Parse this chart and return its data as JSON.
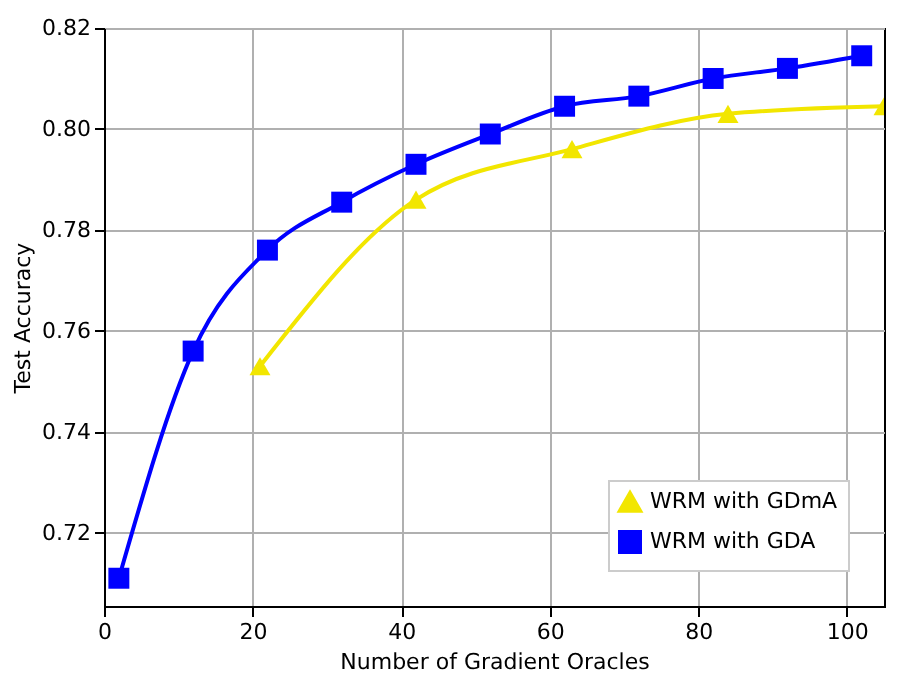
{
  "chart_data": {
    "type": "line",
    "xlabel": "Number of Gradient Oracles",
    "ylabel": "Test Accuracy",
    "xlim": [
      0,
      105
    ],
    "xticks": [
      0,
      20,
      40,
      60,
      80,
      100
    ],
    "ylim": [
      0.7055,
      0.82
    ],
    "yticks": [
      0.72,
      0.74,
      0.76,
      0.78,
      {
        "value": 0.8,
        "label": "0.80"
      },
      0.82
    ],
    "grid": true,
    "legend": "bottom right",
    "line_style": "solid",
    "series": [
      {
        "name": "WRM with GDmA",
        "color": "#f2e600",
        "marker": "triangle",
        "x": [
          21,
          42,
          63,
          84,
          105
        ],
        "values": [
          0.753,
          0.786,
          0.796,
          0.803,
          0.8045
        ]
      },
      {
        "name": "WRM with GDA",
        "color": "#0000ff",
        "marker": "square",
        "x": [
          2,
          12,
          22,
          32,
          42,
          52,
          62,
          72,
          82,
          92,
          102
        ],
        "values": [
          0.711,
          0.756,
          0.776,
          0.7855,
          0.793,
          0.799,
          0.8045,
          0.8065,
          0.81,
          0.812,
          0.8145
        ]
      }
    ]
  }
}
